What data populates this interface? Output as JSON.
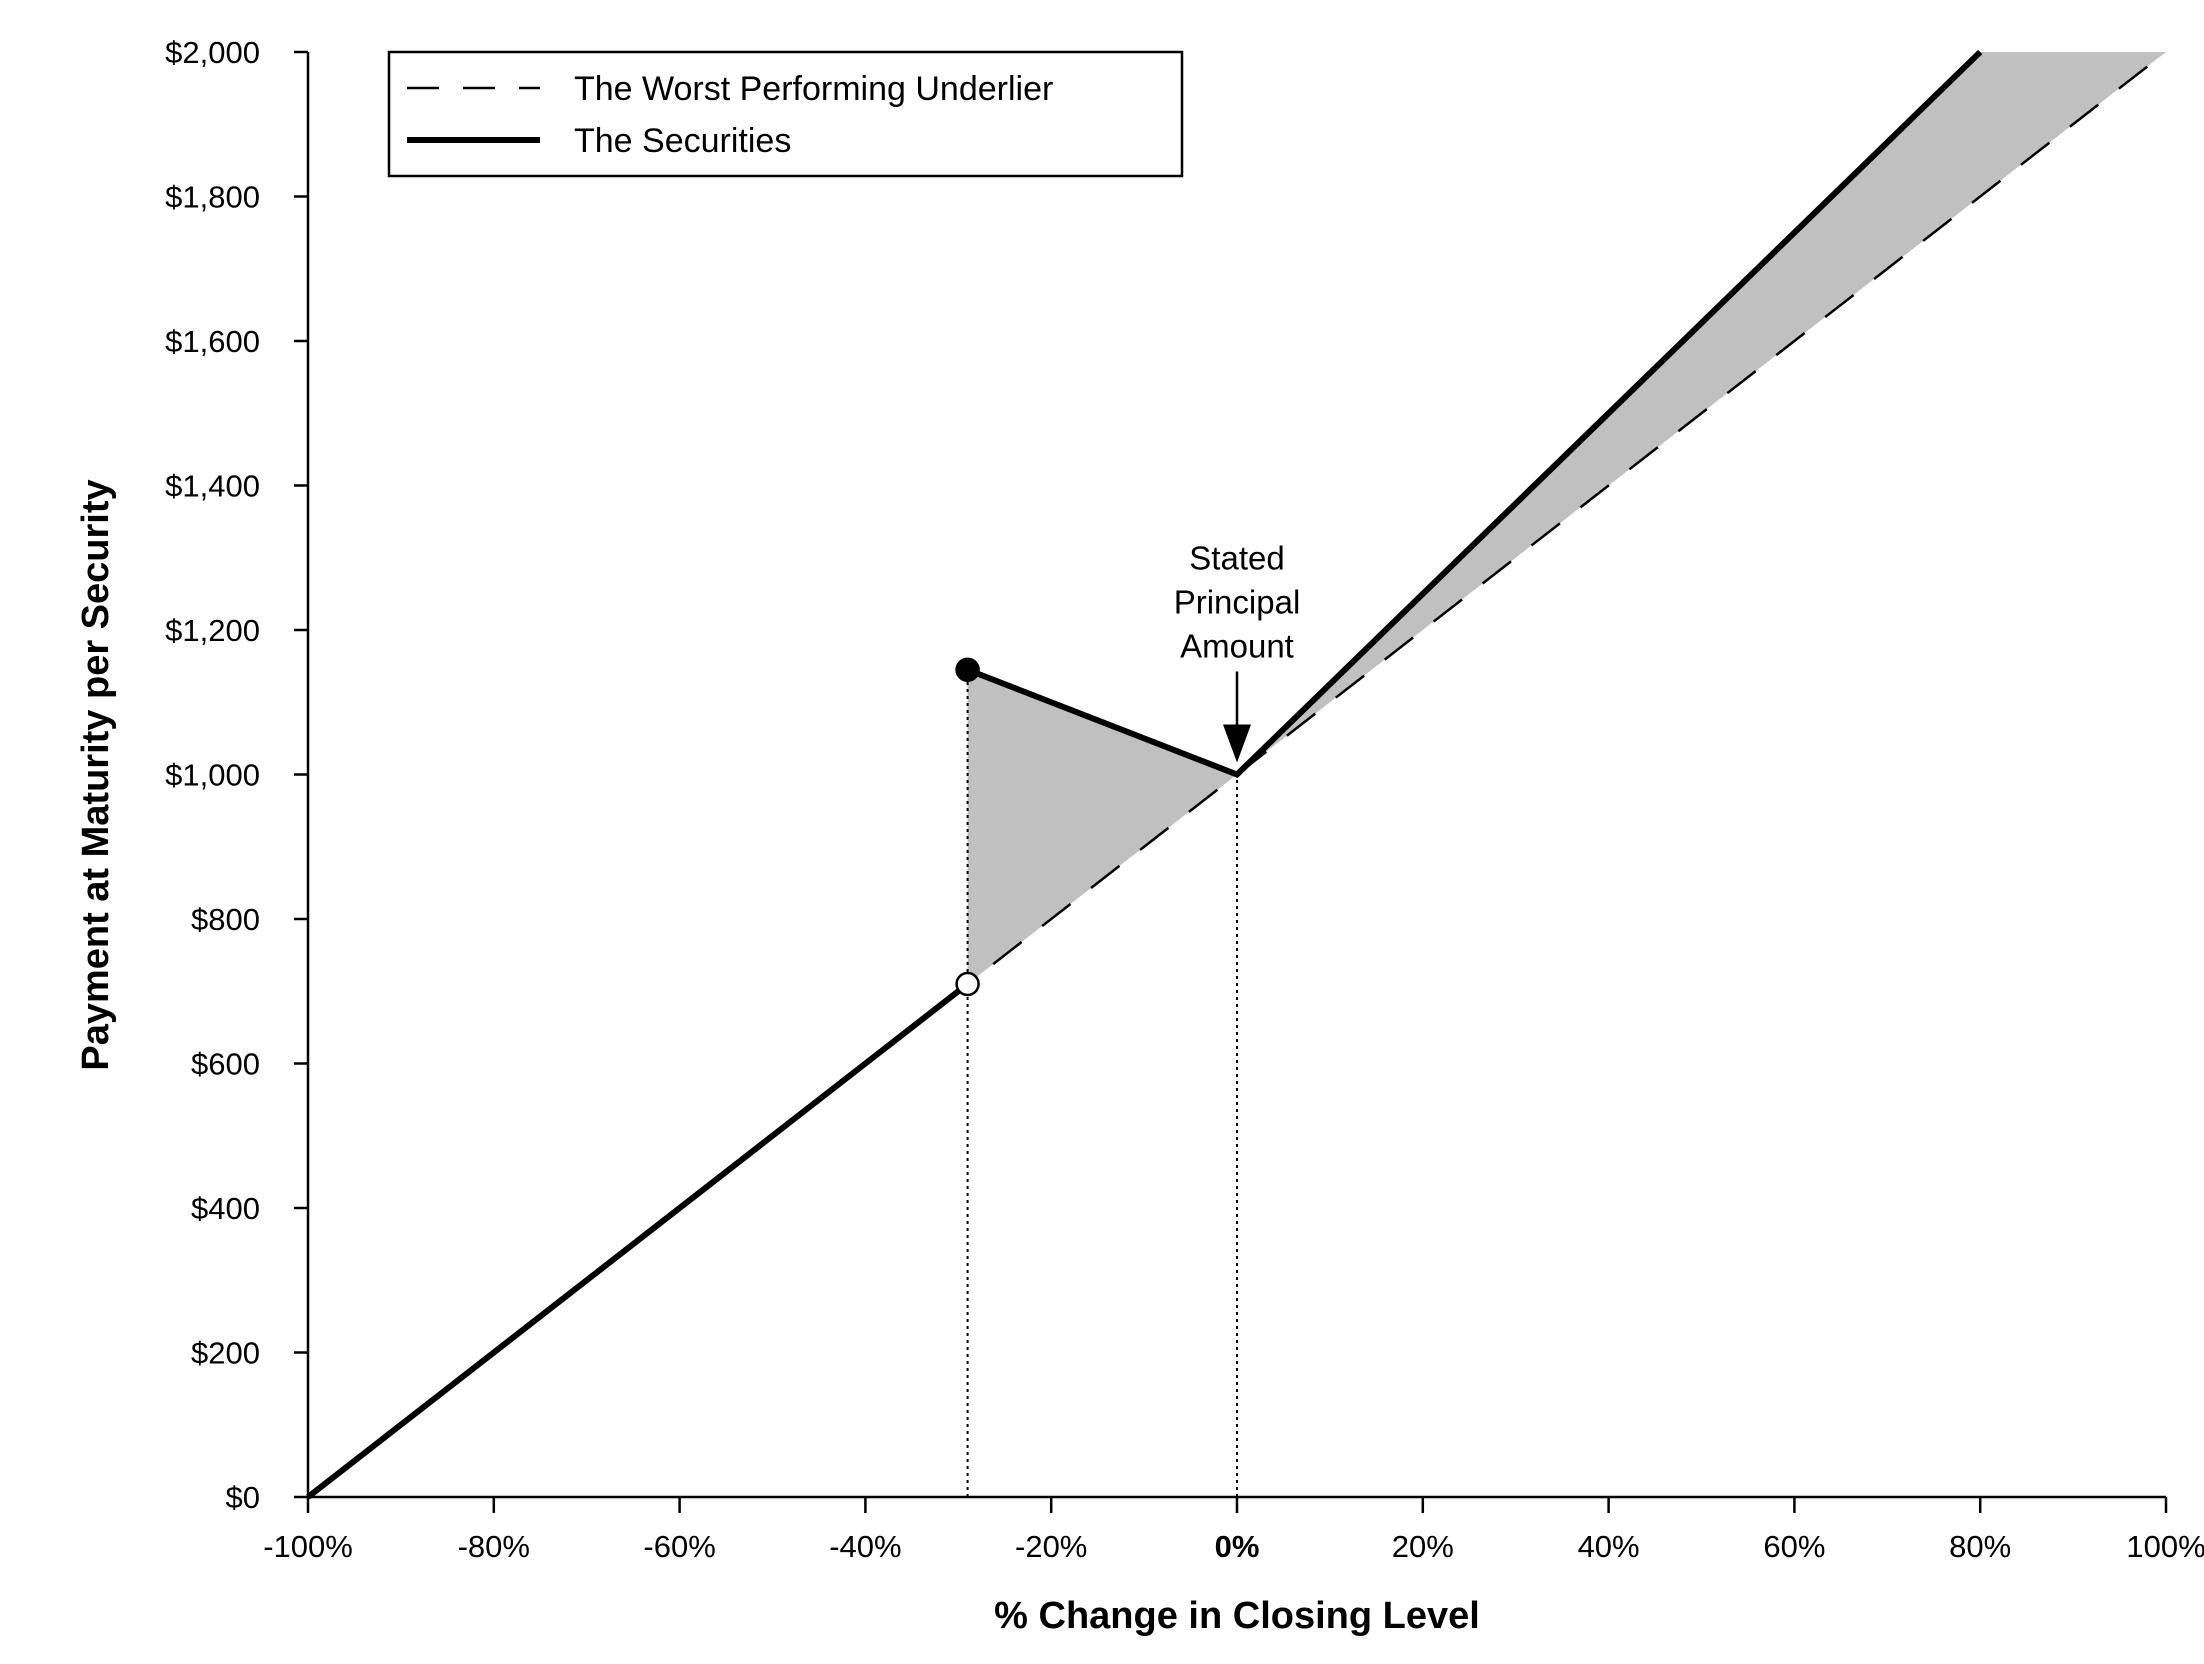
{
  "chart_data": {
    "type": "line",
    "title": "",
    "xlabel": "% Change in Closing Level",
    "ylabel": "Payment at Maturity per Security",
    "xlim": [
      -100,
      100
    ],
    "ylim": [
      0,
      2000
    ],
    "x_ticks": [
      -100,
      -80,
      -60,
      -40,
      -20,
      0,
      20,
      40,
      60,
      80,
      100
    ],
    "x_tick_labels": [
      "-100%",
      "-80%",
      "-60%",
      "-40%",
      "-20%",
      "0%",
      "20%",
      "40%",
      "60%",
      "80%",
      "100%"
    ],
    "y_ticks": [
      0,
      200,
      400,
      600,
      800,
      1000,
      1200,
      1400,
      1600,
      1800,
      2000
    ],
    "y_tick_labels": [
      "$0",
      "$200",
      "$400",
      "$600",
      "$800",
      "$1,000",
      "$1,200",
      "$1,400",
      "$1,600",
      "$1,800",
      "$2,000"
    ],
    "grid": false,
    "legend_position": "top-left",
    "series": [
      {
        "name": "The Worst Performing Underlier",
        "style": "dashed",
        "x": [
          -100,
          100
        ],
        "y": [
          0,
          2000
        ]
      },
      {
        "name": "The Securities",
        "style": "solid-thick",
        "segments": [
          {
            "x": [
              -100,
              -29
            ],
            "y": [
              0,
              710
            ]
          },
          {
            "x": [
              -29,
              0,
              80
            ],
            "y": [
              1145,
              1000,
              2000
            ]
          }
        ]
      }
    ],
    "markers": [
      {
        "x": -29,
        "y": 1145,
        "fill": "filled"
      },
      {
        "x": -29,
        "y": 710,
        "fill": "open"
      }
    ],
    "reference_lines": [
      {
        "x": -29,
        "y_from": 0,
        "y_to": 1145,
        "style": "dotted"
      },
      {
        "x": 0,
        "y_from": 0,
        "y_to": 1000,
        "style": "dotted"
      }
    ],
    "shaded_regions": [
      {
        "x": [
          -29,
          0,
          -29
        ],
        "y": [
          1145,
          1000,
          710
        ],
        "color": "#c0c0c0"
      },
      {
        "x": [
          0,
          80,
          100
        ],
        "y": [
          1000,
          2000,
          2000
        ],
        "color": "#c0c0c0"
      }
    ],
    "annotations": [
      {
        "text_lines": [
          "Stated",
          "Principal",
          "Amount"
        ],
        "x": 0,
        "y": 1000,
        "arrow": "down"
      }
    ],
    "colors": {
      "line": "#000000",
      "shade": "#c0c0c0"
    }
  }
}
